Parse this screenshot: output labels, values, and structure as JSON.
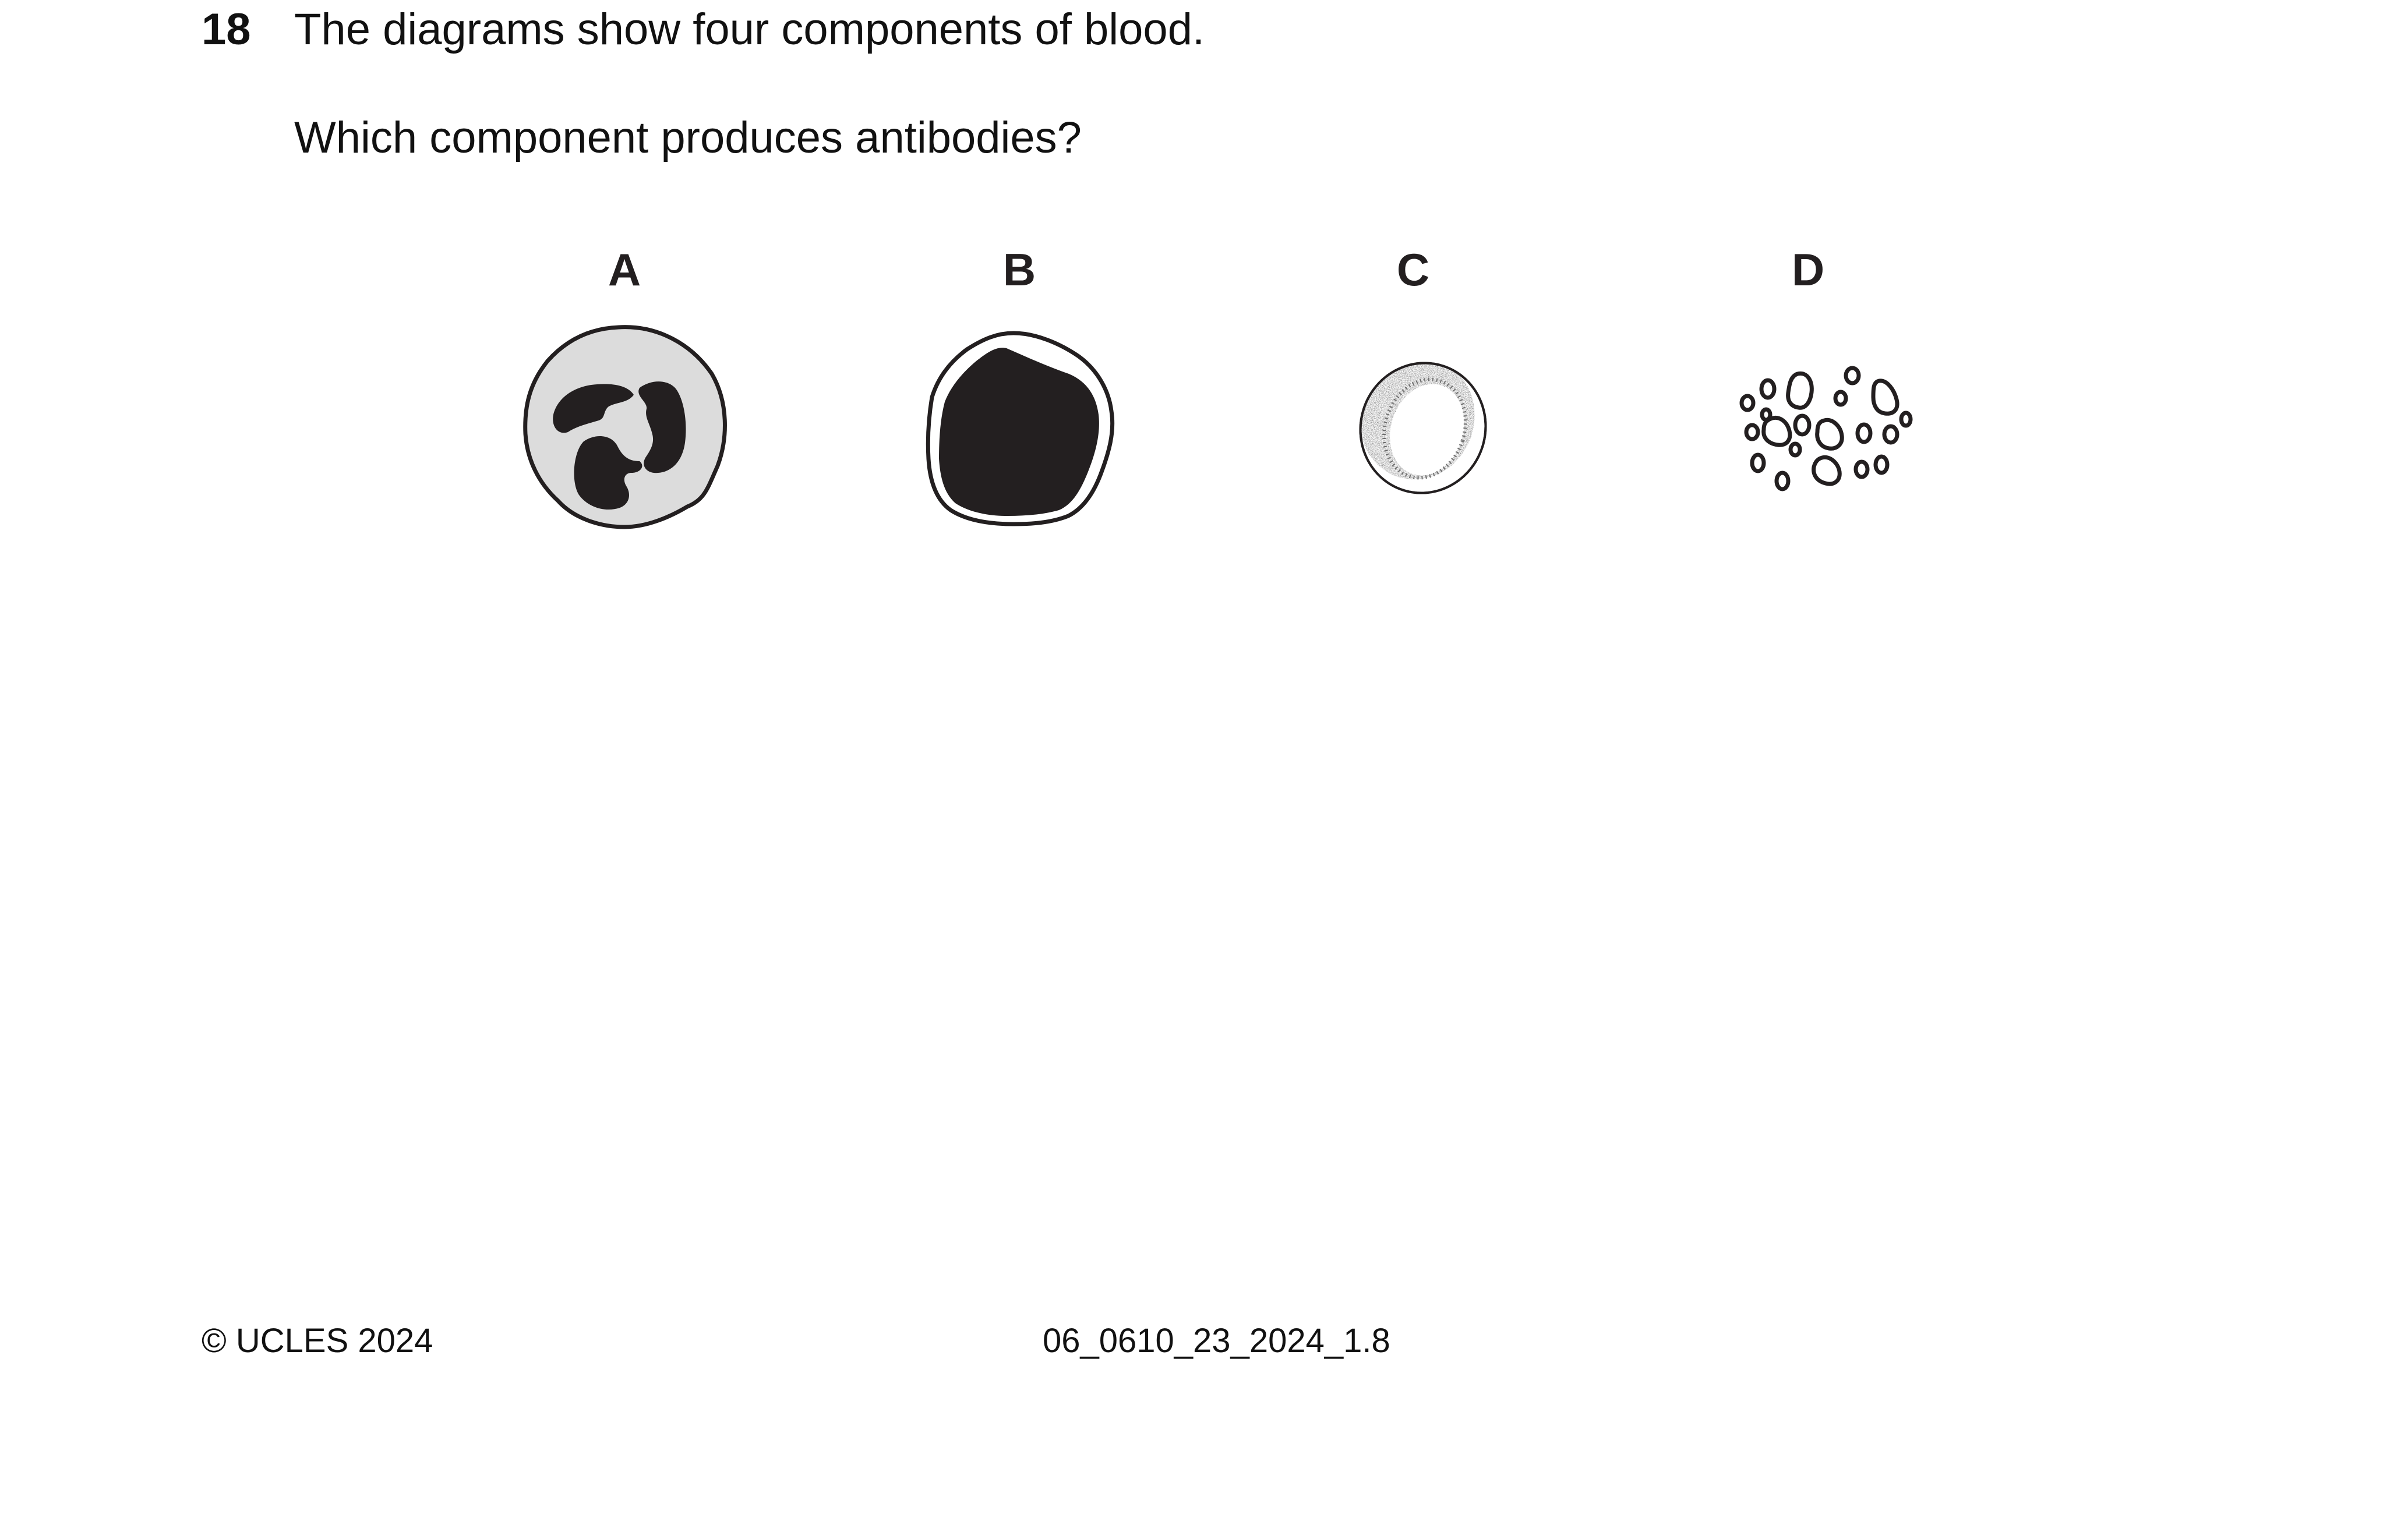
{
  "question": {
    "number": "18",
    "line1": "The diagrams show four components of blood.",
    "line2": "Which component produces antibodies?"
  },
  "options": [
    {
      "label": "A",
      "icon": "phagocyte-icon"
    },
    {
      "label": "B",
      "icon": "lymphocyte-icon"
    },
    {
      "label": "C",
      "icon": "red-blood-cell-icon"
    },
    {
      "label": "D",
      "icon": "platelets-icon"
    }
  ],
  "footer": {
    "copyright": "© UCLES 2024",
    "code": "06_0610_23_2024_1.8"
  },
  "colors": {
    "ink": "#231f20",
    "cytoplasm": "#dcdcdc"
  }
}
